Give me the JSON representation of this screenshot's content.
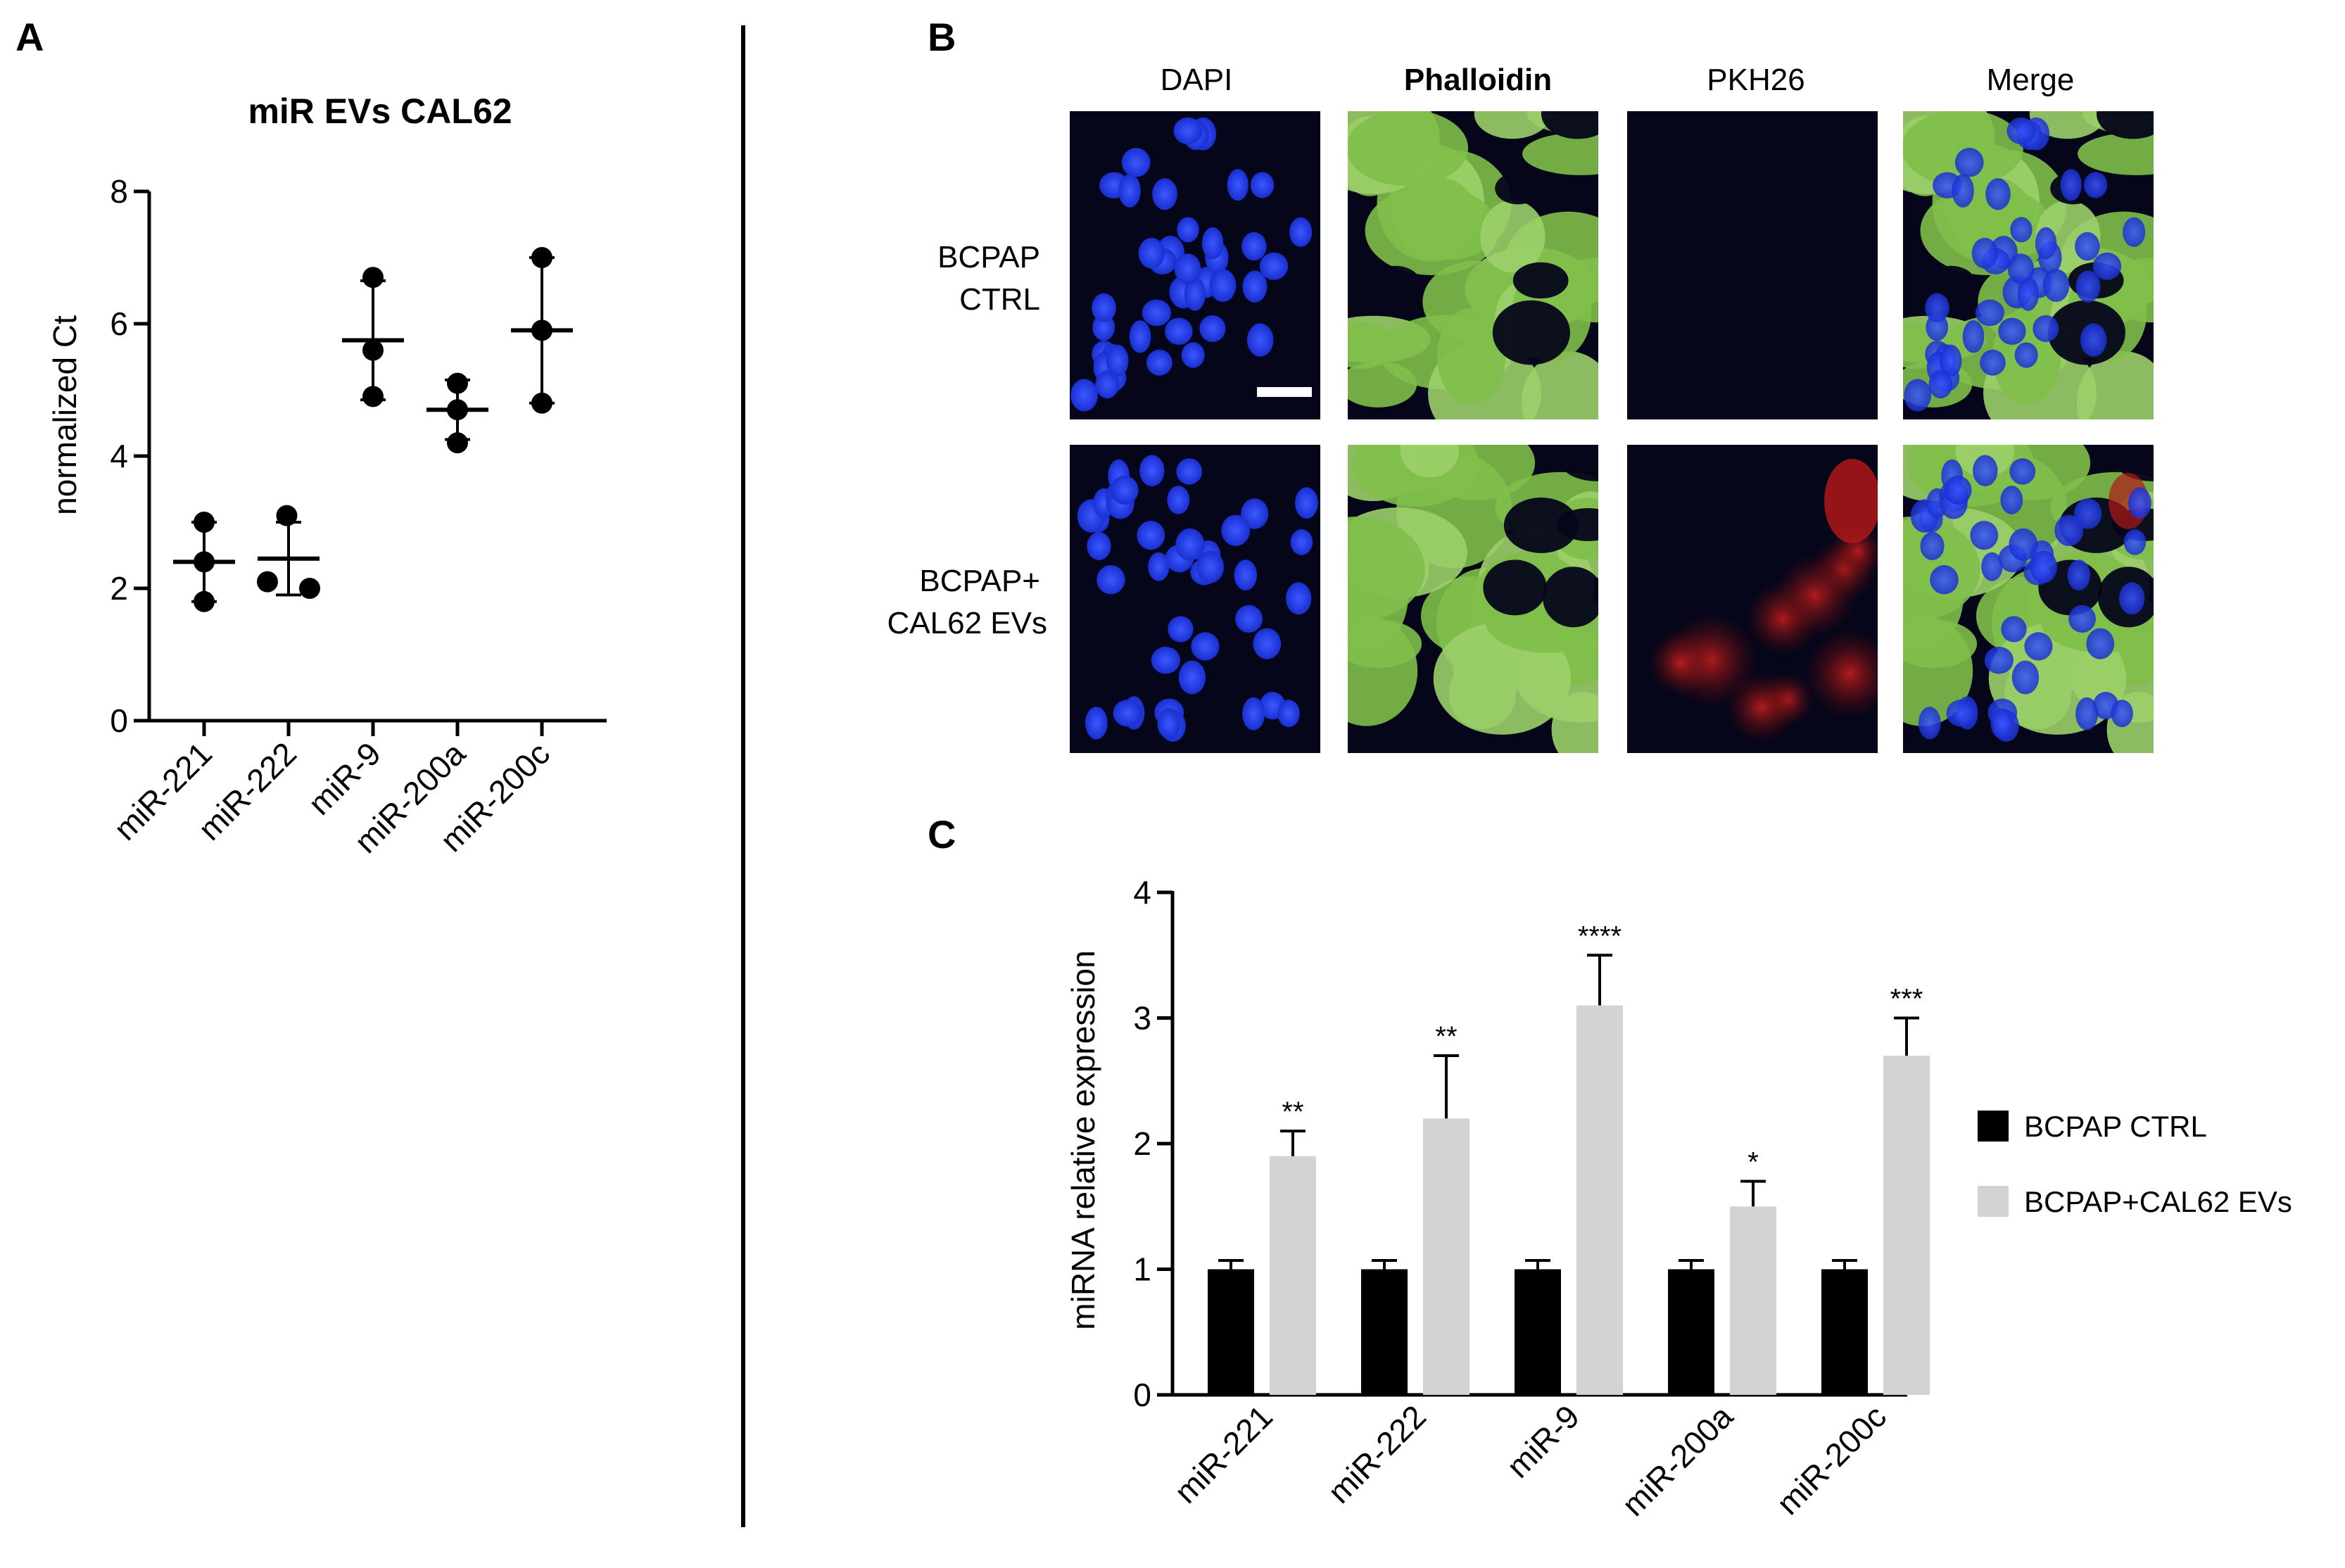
{
  "panels": {
    "a": "A",
    "b": "B",
    "c": "C"
  },
  "micrograph": {
    "columns": [
      "DAPI",
      "Phalloidin",
      "PKH26",
      "Merge"
    ],
    "rows": [
      {
        "line1": "BCPAP",
        "line2": "CTRL"
      },
      {
        "line1": "BCPAP+",
        "line2": "CAL62 EVs"
      }
    ],
    "colors": {
      "dapi": "#1a2fd0",
      "phalloidin": "#7fbf4a",
      "pkh26": "#b01818",
      "background": "#05061a"
    }
  },
  "chart_data": [
    {
      "type": "scatter",
      "title": "miR EVs CAL62",
      "xlabel": "",
      "ylabel": "normalized Ct",
      "categories": [
        "miR-221",
        "miR-222",
        "miR-9",
        "miR-200a",
        "miR-200c"
      ],
      "ylim": [
        0,
        8
      ],
      "yticks": [
        "0",
        "2",
        "4",
        "6",
        "8"
      ],
      "points": [
        [
          3.0,
          2.4,
          1.8
        ],
        [
          3.1,
          2.1,
          2.0
        ],
        [
          6.7,
          5.6,
          4.9
        ],
        [
          5.1,
          4.7,
          4.2
        ],
        [
          7.0,
          5.9,
          4.8
        ]
      ],
      "mean": [
        2.4,
        2.45,
        5.75,
        4.7,
        5.9
      ],
      "sd": [
        0.6,
        0.55,
        0.9,
        0.45,
        1.1
      ],
      "grid": false
    },
    {
      "type": "bar",
      "title": "",
      "xlabel": "",
      "ylabel": "miRNA relative expression",
      "categories": [
        "miR-221",
        "miR-222",
        "miR-9",
        "miR-200a",
        "miR-200c"
      ],
      "ylim": [
        0,
        4
      ],
      "yticks": [
        "0",
        "1",
        "2",
        "3",
        "4"
      ],
      "series": [
        {
          "name": "BCPAP CTRL",
          "values": [
            1,
            1,
            1,
            1,
            1
          ],
          "errors": [
            0.07,
            0.07,
            0.07,
            0.07,
            0.07
          ],
          "color": "#000000"
        },
        {
          "name": "BCPAP+CAL62 EVs",
          "values": [
            1.9,
            2.2,
            3.1,
            1.5,
            2.7
          ],
          "errors": [
            0.2,
            0.5,
            0.4,
            0.2,
            0.3
          ],
          "color": "#d3d3d3"
        }
      ],
      "significance": [
        "**",
        "**",
        "****",
        "*",
        "***"
      ],
      "legend": "right",
      "grid": false
    }
  ]
}
